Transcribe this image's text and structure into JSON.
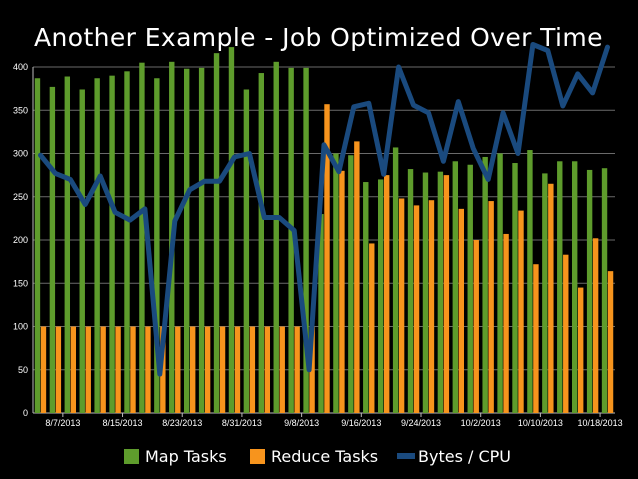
{
  "slide": {
    "title": "Another Example - Job Optimized Over Time"
  },
  "chart_data": {
    "type": "bar",
    "title": "",
    "xlabel": "",
    "ylabel": "",
    "ylim": [
      0,
      400
    ],
    "yticks": [
      0,
      50,
      100,
      150,
      200,
      250,
      300,
      350,
      400
    ],
    "grid": true,
    "legend_position": "bottom",
    "colors": {
      "map": "#5e9c2c",
      "reduce": "#f7941d",
      "line": "#1a4a7e",
      "grid": "#6a6a6a",
      "plot_bg": "#000000"
    },
    "x_labels": [
      {
        "index": 1,
        "label": "8/7/2013"
      },
      {
        "index": 5,
        "label": "8/15/2013"
      },
      {
        "index": 9,
        "label": "8/23/2013"
      },
      {
        "index": 13,
        "label": "8/31/2013"
      },
      {
        "index": 17,
        "label": "9/8/2013"
      },
      {
        "index": 21,
        "label": "9/16/2013"
      },
      {
        "index": 25,
        "label": "9/24/2013"
      },
      {
        "index": 29,
        "label": "10/2/2013"
      },
      {
        "index": 33,
        "label": "10/10/2013"
      },
      {
        "index": 37,
        "label": "10/18/2013"
      }
    ],
    "series": [
      {
        "name": "Map Tasks",
        "kind": "bar",
        "values": [
          387,
          377,
          389,
          374,
          387,
          390,
          395,
          405,
          387,
          406,
          398,
          399,
          416,
          423,
          374,
          393,
          406,
          399,
          399,
          230,
          300,
          298,
          267,
          270,
          307,
          282,
          278,
          279,
          291,
          287,
          296,
          300,
          289,
          304,
          277,
          291,
          291,
          281,
          283
        ]
      },
      {
        "name": "Reduce Tasks",
        "kind": "bar",
        "values": [
          100,
          100,
          100,
          100,
          100,
          100,
          100,
          100,
          100,
          100,
          100,
          100,
          100,
          100,
          100,
          100,
          100,
          100,
          100,
          357,
          280,
          314,
          196,
          275,
          248,
          240,
          246,
          275,
          236,
          200,
          245,
          207,
          234,
          172,
          265,
          183,
          145,
          202,
          164
        ]
      },
      {
        "name": "Bytes / CPU",
        "kind": "line",
        "values": [
          298,
          277,
          270,
          241,
          274,
          232,
          223,
          236,
          45,
          222,
          258,
          268,
          268,
          296,
          300,
          226,
          226,
          211,
          50,
          310,
          279,
          354,
          358,
          276,
          400,
          356,
          347,
          291,
          360,
          306,
          270,
          347,
          300,
          426,
          419,
          355,
          392,
          370,
          423
        ]
      }
    ]
  }
}
